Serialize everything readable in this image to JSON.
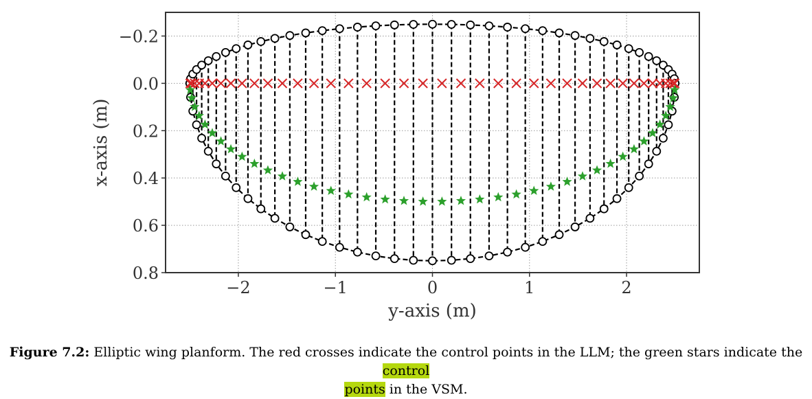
{
  "chart_data": {
    "type": "scatter",
    "title": "",
    "xlabel": "y-axis (m)",
    "ylabel": "x-axis (m)",
    "xlim": [
      -2.75,
      2.75
    ],
    "ylim": [
      0.8,
      -0.3
    ],
    "y_inverted": true,
    "grid": true,
    "xticks": [
      -2,
      -1,
      0,
      1,
      2
    ],
    "xtick_labels": [
      "−2",
      "−1",
      "0",
      "1",
      "2"
    ],
    "yticks": [
      -0.2,
      0.0,
      0.2,
      0.4,
      0.6,
      0.8
    ],
    "ytick_labels": [
      "−0.2",
      "0.0",
      "0.2",
      "0.4",
      "0.6",
      "0.8"
    ],
    "planform": {
      "semi_span": 2.5,
      "root_leading_edge": -0.25,
      "root_trailing_edge": 0.75,
      "n_panels": 40,
      "spacing": "cosine",
      "style": "black dashed lines with open circle markers"
    },
    "series": [],
    "marker_colors": {
      "outline": "#000000",
      "red_cross": "#d62728",
      "green_star": "#2ca02c"
    },
    "marker_rows": {
      "red_cross_x": 0.0,
      "green_star_root_x": 0.5
    }
  },
  "caption": {
    "label": "Figure 7.2:",
    "text_before": "Elliptic wing planform. The red crosses indicate the control points in the LLM; the green stars indicate the",
    "highlight_1": "control",
    "highlight_2": "points",
    "text_after": "in the VSM."
  }
}
